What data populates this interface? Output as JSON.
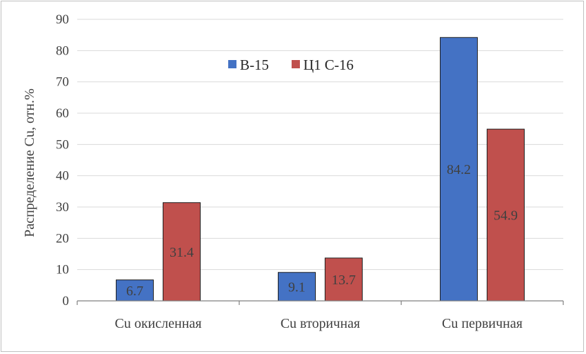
{
  "chart_data": {
    "type": "bar",
    "categories": [
      "Cu окисленная",
      "Cu вторичная",
      "Cu первичная"
    ],
    "series": [
      {
        "name": "В-15",
        "values": [
          6.7,
          9.1,
          84.2
        ],
        "color": "#4472c4"
      },
      {
        "name": "Ц1 С-16",
        "values": [
          31.4,
          13.7,
          54.9
        ],
        "color": "#c0504d"
      }
    ],
    "ylabel": "Распределение Cu, отн.%",
    "xlabel": "",
    "ylim": [
      0,
      90
    ],
    "yticks": [
      0,
      10,
      20,
      30,
      40,
      50,
      60,
      70,
      80,
      90
    ],
    "value_labels": [
      "6.7",
      "31.4",
      "9.1",
      "13.7",
      "84.2",
      "54.9"
    ],
    "grid": true,
    "legend_position": "top-center",
    "gridline_color": "#d9d9d9"
  }
}
